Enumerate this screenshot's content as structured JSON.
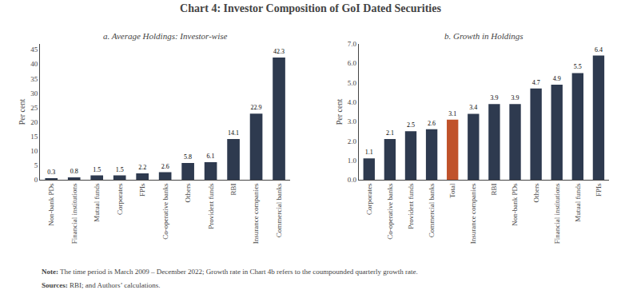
{
  "title": "Chart 4: Investor Composition of GoI Dated Securities",
  "annotations": [
    "Note: The time period is March 2009 – December 2022; Growth rate in Chart 4b refers to the coumpounded quarterly growth rate.",
    "Sources: RBI; and Authors’ calculations."
  ],
  "chart_data": [
    {
      "type": "bar",
      "title": "a. Average Holdings: Investor-wise",
      "categories": [
        "Non-bank PDs",
        "Financial institutions",
        "Mutual funds",
        "Corporates",
        "FPIs",
        "Co-operative banks",
        "Others",
        "Provident funds",
        "RBI",
        "Insurance companies",
        "Commercial banks"
      ],
      "values": [
        0.3,
        0.8,
        1.5,
        1.5,
        2.2,
        2.6,
        5.8,
        6.1,
        14.1,
        22.9,
        42.3
      ],
      "color": "#2e3a4f",
      "y_label": "Per cent",
      "ylim": [
        0,
        47
      ],
      "yticks": [
        0,
        5,
        10,
        15,
        20,
        25,
        30,
        35,
        40,
        45
      ],
      "data_labels": true,
      "grid": false
    },
    {
      "type": "bar",
      "title": "b. Growth in Holdings",
      "categories": [
        "Corporates",
        "Co-operative banks",
        "Provident funds",
        "Commercial banks",
        "Total",
        "Insurance companies",
        "RBI",
        "Non-bank PDs",
        "Others",
        "Financial institutions",
        "Mutual funds",
        "FPIs"
      ],
      "values": [
        1.1,
        2.1,
        2.5,
        2.6,
        3.1,
        3.4,
        3.9,
        3.9,
        4.7,
        4.9,
        5.5,
        6.4
      ],
      "colors": [
        "#2e3a4f",
        "#2e3a4f",
        "#2e3a4f",
        "#2e3a4f",
        "#c0522a",
        "#2e3a4f",
        "#2e3a4f",
        "#2e3a4f",
        "#2e3a4f",
        "#2e3a4f",
        "#2e3a4f",
        "#2e3a4f"
      ],
      "y_label": "Per cent",
      "ylim": [
        0,
        7.0
      ],
      "yticks": [
        {
          "value": 0,
          "label": "0.0"
        },
        {
          "value": 1,
          "label": "1.0"
        },
        {
          "value": 2,
          "label": "2.0"
        },
        {
          "value": 3,
          "label": "3.0"
        },
        {
          "value": 4,
          "label": "4.0"
        },
        {
          "value": 5,
          "label": "5.0"
        },
        {
          "value": 6,
          "label": "6.0"
        },
        {
          "value": 7,
          "label": "7.0"
        }
      ],
      "data_labels": true,
      "grid": false
    }
  ]
}
